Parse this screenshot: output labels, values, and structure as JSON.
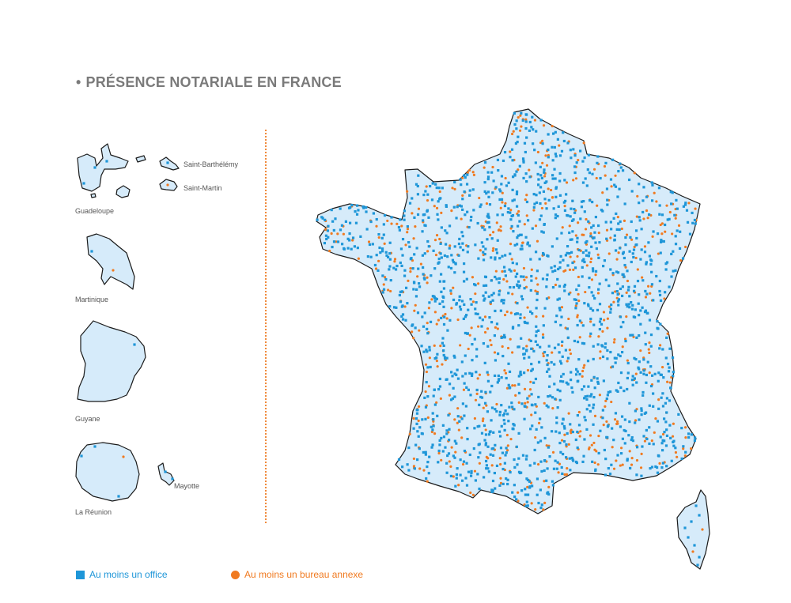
{
  "title": "PRÉSENCE NOTARIALE EN FRANCE",
  "title_bullet": "•",
  "territories": {
    "saint_barthelemy": "Saint-Barthélémy",
    "saint_martin": "Saint-Martin",
    "guadeloupe": "Guadeloupe",
    "martinique": "Martinique",
    "guyane": "Guyane",
    "la_reunion": "La Réunion",
    "mayotte": "Mayotte"
  },
  "legend": {
    "office": {
      "label": "Au moins un office",
      "color": "#1e96d8",
      "shape": "square"
    },
    "annexe": {
      "label": "Au moins un bureau annexe",
      "color": "#f07a20",
      "shape": "circle"
    }
  },
  "colors": {
    "land_fill": "#d6ebfa",
    "outline": "#1a1a1a",
    "divider": "#f08a3c"
  }
}
